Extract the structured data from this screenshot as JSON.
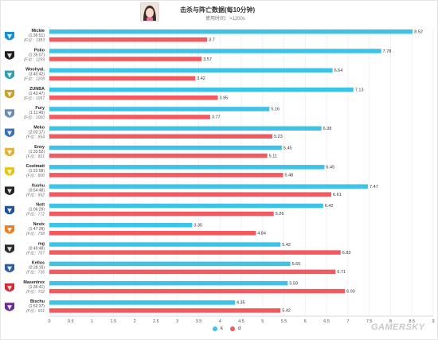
{
  "header": {
    "title": "击杀与阵亡数据(每10分钟)",
    "subtitle": "使用时间：>1200s"
  },
  "watermark": "GAMERSKY",
  "chart_data": {
    "type": "bar",
    "orientation": "horizontal",
    "title": "击杀与阵亡数据(每10分钟)",
    "subtitle": "使用时间：>1200s",
    "categories": [
      {
        "name": "Mickie",
        "time": "(1:36:51)",
        "rank": "(F位：1383"
      },
      {
        "name": "Poko",
        "time": "(1:35:07)",
        "rank": "(F位：1259"
      },
      {
        "name": "Woohyal.",
        "time": "(3:40:42)",
        "rank": "(F位：1208"
      },
      {
        "name": "ZUNBA",
        "time": "(1:43:47)",
        "rank": "(F位：1097"
      },
      {
        "name": "Fury",
        "time": "(1:11:40)",
        "rank": "(F位：1060"
      },
      {
        "name": "Meko",
        "time": "(2:02:17)",
        "rank": "(F位：854"
      },
      {
        "name": "Envy",
        "time": "(1:33:52)",
        "rank": "(F位：821"
      },
      {
        "name": "Coolmatt",
        "time": "(1:22:08)",
        "rank": "(F位：800"
      },
      {
        "name": "Xushu",
        "time": "(0:54:48)",
        "rank": "(F位：862"
      },
      {
        "name": "Nott",
        "time": "(1:06:29)",
        "rank": "(F位：772"
      },
      {
        "name": "Nevix",
        "time": "(1:47:28)",
        "rank": "(F位：758"
      },
      {
        "name": "mg",
        "time": "(0:49:48)",
        "rank": "(F位：757"
      },
      {
        "name": "Kellos",
        "time": "(0:28:19)",
        "rank": "(F位：736"
      },
      {
        "name": "Masentrex",
        "time": "(1:36:41)",
        "rank": "(F位：702"
      },
      {
        "name": "Bischu",
        "time": "(1:52:37)",
        "rank": "(F位：601"
      }
    ],
    "series": [
      {
        "name": "k",
        "color": "#3ec3e8",
        "values": [
          8.52,
          7.78,
          6.64,
          7.13,
          5.16,
          6.38,
          5.45,
          6.45,
          7.47,
          6.42,
          3.35,
          5.42,
          5.65,
          5.59,
          4.35
        ]
      },
      {
        "name": "d",
        "color": "#f25a60",
        "values": [
          3.7,
          3.57,
          3.42,
          3.95,
          3.77,
          5.23,
          5.11,
          5.48,
          6.61,
          5.26,
          4.84,
          6.83,
          6.71,
          6.93,
          5.42
        ]
      }
    ],
    "xlim": [
      0,
      9
    ],
    "xticks": [
      0,
      0.5,
      1,
      1.5,
      2,
      2.5,
      3,
      3.5,
      4,
      4.5,
      5,
      5.5,
      6,
      6.5,
      7,
      7.5,
      8,
      8.5,
      9
    ],
    "grid": true,
    "legend_position": "bottom-center",
    "icon_colors": [
      "#1a8fd6",
      "#231f20",
      "#2ea1b3",
      "#c9a227",
      "#6b8db5",
      "#3d6fb5",
      "#e0b43a",
      "#e3c61a",
      "#222222",
      "#1e4f9c",
      "#f27a21",
      "#2b2b2b",
      "#2f5d9e",
      "#d12b36",
      "#6a2c91"
    ]
  }
}
